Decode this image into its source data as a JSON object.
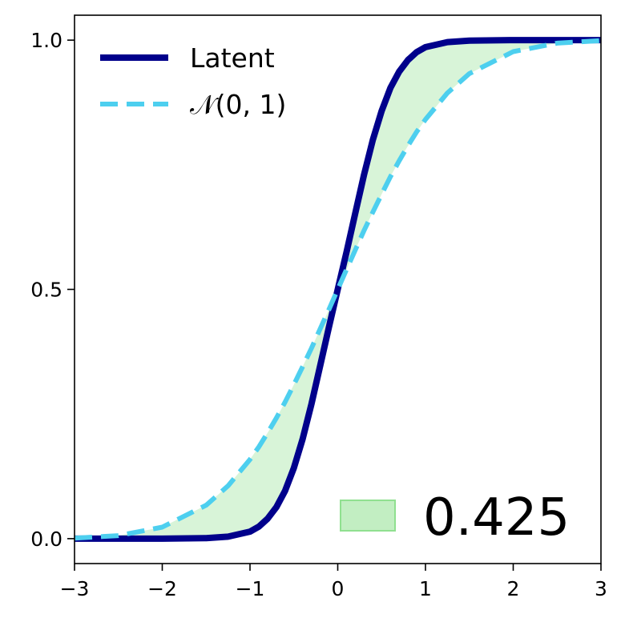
{
  "chart_data": {
    "type": "line",
    "title": "",
    "xlabel": "",
    "ylabel": "",
    "xlim": [
      -3,
      3
    ],
    "ylim": [
      -0.05,
      1.05
    ],
    "x_ticks": [
      -3,
      -2,
      -1,
      0,
      1,
      2,
      3
    ],
    "x_tick_labels": [
      "−3",
      "−2",
      "−1",
      "0",
      "1",
      "2",
      "3"
    ],
    "y_ticks": [
      0.0,
      0.5,
      1.0
    ],
    "y_tick_labels": [
      "0.0",
      "0.5",
      "1.0"
    ],
    "grid": false,
    "legend_position": "top-left",
    "series": [
      {
        "name": "Latent",
        "style": "solid",
        "color": "#00008b",
        "x": [
          -3.0,
          -2.5,
          -2.0,
          -1.5,
          -1.25,
          -1.0,
          -0.9,
          -0.8,
          -0.7,
          -0.6,
          -0.5,
          -0.4,
          -0.3,
          -0.2,
          -0.1,
          0.0,
          0.1,
          0.2,
          0.3,
          0.4,
          0.5,
          0.6,
          0.7,
          0.8,
          0.9,
          1.0,
          1.25,
          1.5,
          2.0,
          2.5,
          3.0
        ],
        "y": [
          0.0,
          0.0,
          0.0,
          0.001,
          0.004,
          0.014,
          0.024,
          0.04,
          0.063,
          0.096,
          0.142,
          0.2,
          0.27,
          0.347,
          0.425,
          0.5,
          0.575,
          0.653,
          0.73,
          0.8,
          0.858,
          0.904,
          0.937,
          0.96,
          0.976,
          0.986,
          0.996,
          0.999,
          1.0,
          1.0,
          1.0
        ]
      },
      {
        "name": "𝒩(0, 1)",
        "style": "dashed",
        "color": "#4dcfef",
        "x": [
          -3.0,
          -2.5,
          -2.0,
          -1.5,
          -1.25,
          -1.0,
          -0.9,
          -0.8,
          -0.7,
          -0.6,
          -0.5,
          -0.4,
          -0.3,
          -0.2,
          -0.1,
          0.0,
          0.1,
          0.2,
          0.3,
          0.4,
          0.5,
          0.6,
          0.7,
          0.8,
          0.9,
          1.0,
          1.25,
          1.5,
          2.0,
          2.5,
          3.0
        ],
        "y": [
          0.001,
          0.006,
          0.023,
          0.067,
          0.106,
          0.159,
          0.184,
          0.212,
          0.242,
          0.274,
          0.309,
          0.345,
          0.382,
          0.421,
          0.46,
          0.5,
          0.54,
          0.579,
          0.618,
          0.655,
          0.691,
          0.726,
          0.758,
          0.788,
          0.816,
          0.841,
          0.894,
          0.933,
          0.977,
          0.994,
          0.999
        ]
      }
    ],
    "fill_between": {
      "color": "#90e090",
      "opacity": 0.35,
      "label": "0.425"
    }
  }
}
